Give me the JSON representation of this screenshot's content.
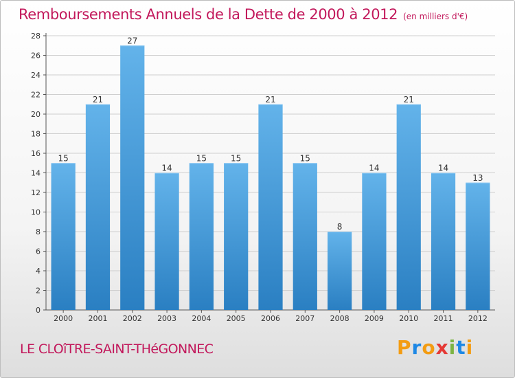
{
  "header": {
    "title": "Remboursements Annuels de la Dette de 2000 à 2012",
    "unit": "(en milliers d'€)"
  },
  "footer": {
    "commune": "LE CLOîTRE-SAINT-THéGONNEC",
    "logo": {
      "letters": [
        "P",
        "r",
        "o",
        "x",
        "i",
        "t",
        "i"
      ],
      "colors": [
        "#f39c12",
        "#1e88e5",
        "#f39c12",
        "#e53935",
        "#7cb342",
        "#1e88e5",
        "#f39c12"
      ]
    }
  },
  "colors": {
    "title": "#c2185b",
    "bar_light": "#63b3ea",
    "bar_dark": "#2a7fc2",
    "grid": "#cfcfcf"
  },
  "chart_data": {
    "type": "bar",
    "title": "Remboursements Annuels de la Dette de 2000 à 2012",
    "subtitle": "(en milliers d'€)",
    "xlabel": "",
    "ylabel": "",
    "categories": [
      "2000",
      "2001",
      "2002",
      "2003",
      "2004",
      "2005",
      "2006",
      "2007",
      "2008",
      "2009",
      "2010",
      "2011",
      "2012"
    ],
    "values": [
      15,
      21,
      27,
      14,
      15,
      15,
      21,
      15,
      8,
      14,
      21,
      14,
      13
    ],
    "ylim": [
      0,
      28
    ],
    "yticks": [
      0,
      2,
      4,
      6,
      8,
      10,
      12,
      14,
      16,
      18,
      20,
      22,
      24,
      26,
      28
    ],
    "grid": true,
    "data_labels": true
  }
}
